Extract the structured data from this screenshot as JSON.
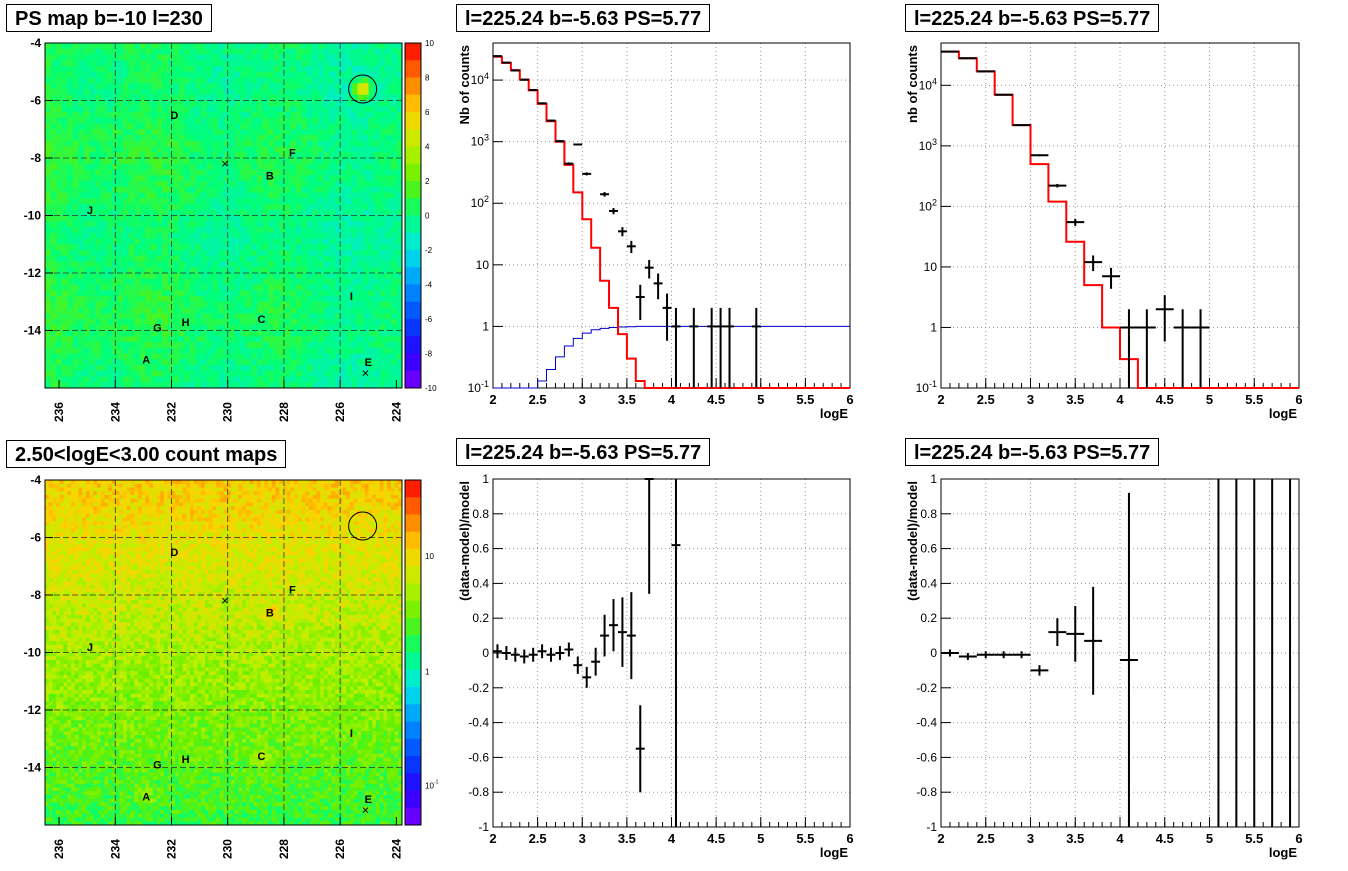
{
  "panels": {
    "ps_map": {
      "title": "PS map b=-10 l=230"
    },
    "count_map": {
      "title": "2.50<logE<3.00 count maps"
    },
    "spec1": {
      "title": "l=225.24 b=-5.63 PS=5.77"
    },
    "spec2": {
      "title": "l=225.24 b=-5.63 PS=5.77"
    },
    "res1": {
      "title": "l=225.24 b=-5.63 PS=5.77"
    },
    "res2": {
      "title": "l=225.24 b=-5.63 PS=5.77"
    }
  },
  "colors": {
    "model": "#ff0000",
    "data": "#000000",
    "exposure": "#0000cc",
    "grid": "#888888"
  },
  "chart_data": [
    {
      "id": "ps_map",
      "type": "heatmap",
      "title": "PS map b=-10 l=230",
      "x_ticks": [
        "236",
        "234",
        "232",
        "230",
        "228",
        "226",
        "224"
      ],
      "y_ticks": [
        "-4",
        "-6",
        "-8",
        "-10",
        "-12",
        "-14"
      ],
      "xlim": [
        236.5,
        223.8
      ],
      "ylim": [
        -16,
        -4
      ],
      "colorbar_ticks": [
        "10",
        "8",
        "6",
        "4",
        "2",
        "0",
        "-2",
        "-4",
        "-6",
        "-8",
        "-10"
      ],
      "colorbar_range": [
        -10,
        10
      ],
      "labels": [
        {
          "text": "D",
          "l": 231.9,
          "b": -6.5
        },
        {
          "text": "F",
          "l": 227.7,
          "b": -7.8
        },
        {
          "text": "B",
          "l": 228.5,
          "b": -8.6
        },
        {
          "text": "J",
          "l": 234.9,
          "b": -9.8
        },
        {
          "text": "I",
          "l": 225.6,
          "b": -12.8
        },
        {
          "text": "G",
          "l": 232.5,
          "b": -13.9
        },
        {
          "text": "H",
          "l": 231.5,
          "b": -13.7
        },
        {
          "text": "C",
          "l": 228.8,
          "b": -13.6
        },
        {
          "text": "A",
          "l": 232.9,
          "b": -15.0
        },
        {
          "text": "E",
          "l": 225.0,
          "b": -15.1
        }
      ],
      "source_circle": {
        "l": 225.2,
        "b": -5.6
      },
      "crosses": [
        {
          "l": 230.1,
          "b": -8.2
        },
        {
          "l": 225.1,
          "b": -15.5
        }
      ]
    },
    {
      "id": "count_map",
      "type": "heatmap",
      "title": "2.50<logE<3.00 count maps",
      "x_ticks": [
        "236",
        "234",
        "232",
        "230",
        "228",
        "226",
        "224"
      ],
      "y_ticks": [
        "-4",
        "-6",
        "-8",
        "-10",
        "-12",
        "-14"
      ],
      "xlim": [
        236.5,
        223.8
      ],
      "ylim": [
        -16,
        -4
      ],
      "colorbar_ticks": [
        "10",
        "1",
        "10-1"
      ],
      "colorbar_scale": "log",
      "labels": [
        {
          "text": "D",
          "l": 231.9,
          "b": -6.5
        },
        {
          "text": "F",
          "l": 227.7,
          "b": -7.8
        },
        {
          "text": "B",
          "l": 228.5,
          "b": -8.6
        },
        {
          "text": "J",
          "l": 234.9,
          "b": -9.8
        },
        {
          "text": "I",
          "l": 225.6,
          "b": -12.8
        },
        {
          "text": "G",
          "l": 232.5,
          "b": -13.9
        },
        {
          "text": "H",
          "l": 231.5,
          "b": -13.7
        },
        {
          "text": "C",
          "l": 228.8,
          "b": -13.6
        },
        {
          "text": "A",
          "l": 232.9,
          "b": -15.0
        },
        {
          "text": "E",
          "l": 225.0,
          "b": -15.1
        }
      ],
      "source_circle": {
        "l": 225.2,
        "b": -5.6
      },
      "crosses": [
        {
          "l": 230.1,
          "b": -8.2
        },
        {
          "l": 225.1,
          "b": -15.5
        }
      ]
    },
    {
      "id": "spec1",
      "type": "line",
      "title": "l=225.24 b=-5.63 PS=5.77",
      "xlabel": "logE",
      "ylabel": "Nb of counts",
      "xlim": [
        2,
        6
      ],
      "ylim": [
        0.1,
        40000
      ],
      "yscale": "log",
      "x_ticks": [
        "2",
        "2.5",
        "3",
        "3.5",
        "4",
        "4.5",
        "5",
        "5.5",
        "6"
      ],
      "y_ticks": [
        "10-1",
        "1",
        "10",
        "102",
        "103",
        "104"
      ],
      "grid": true,
      "series": [
        {
          "role": "model_hist",
          "step": 0.1,
          "edges_start": 2.0,
          "values": [
            24000,
            19000,
            14500,
            10200,
            6800,
            4100,
            2150,
            1000,
            420,
            150,
            55,
            19,
            5.5,
            2.0,
            0.75,
            0.3,
            0.13,
            0.1,
            0.1,
            0.1,
            0.1,
            0.1,
            0.1,
            0.1,
            0.1,
            0.1,
            0.1,
            0.1,
            0.1,
            0.1,
            0.1,
            0.1,
            0.1,
            0.1,
            0.1,
            0.1,
            0.1,
            0.1,
            0.1,
            0.1
          ]
        },
        {
          "role": "exposure",
          "step": 0.1,
          "edges_start": 2.0,
          "values": [
            0.1,
            0.1,
            0.1,
            0.1,
            0.1,
            0.13,
            0.2,
            0.32,
            0.48,
            0.64,
            0.78,
            0.88,
            0.93,
            0.96,
            0.98,
            0.99,
            1,
            1,
            1,
            1,
            1,
            1,
            1,
            1,
            1,
            1,
            1,
            1,
            1,
            1,
            1,
            1,
            1,
            1,
            1,
            1,
            1,
            1,
            1,
            1
          ]
        },
        {
          "role": "data",
          "points": [
            [
              2.05,
              24500,
              0.05
            ],
            [
              2.15,
              19200,
              0.05
            ],
            [
              2.25,
              14300,
              0.05
            ],
            [
              2.35,
              10100,
              0.05
            ],
            [
              2.45,
              6900,
              0.05
            ],
            [
              2.55,
              4200,
              0.05
            ],
            [
              2.65,
              2200,
              0.05
            ],
            [
              2.75,
              1020,
              0.05
            ],
            [
              2.85,
              440,
              0.05
            ],
            [
              2.95,
              900,
              0.05
            ],
            [
              3.05,
              300,
              0.05
            ],
            [
              3.25,
              140,
              0.05
            ],
            [
              3.35,
              75,
              0.05
            ],
            [
              3.45,
              35,
              0.05
            ],
            [
              3.55,
              20,
              0.05
            ],
            [
              3.65,
              3,
              0.05
            ],
            [
              3.75,
              9,
              0.05
            ],
            [
              3.85,
              5,
              0.05
            ],
            [
              3.95,
              2,
              0.05
            ],
            [
              4.05,
              1,
              0.05
            ],
            [
              4.25,
              1,
              0.05
            ],
            [
              4.45,
              1,
              0.05
            ],
            [
              4.55,
              1,
              0.05
            ],
            [
              4.65,
              1,
              0.05
            ],
            [
              4.95,
              1,
              0.05
            ]
          ]
        }
      ]
    },
    {
      "id": "spec2",
      "type": "line",
      "title": "l=225.24 b=-5.63 PS=5.77",
      "xlabel": "logE",
      "ylabel": "nb of counts",
      "xlim": [
        2,
        6
      ],
      "ylim": [
        0.1,
        50000
      ],
      "yscale": "log",
      "x_ticks": [
        "2",
        "2.5",
        "3",
        "3.5",
        "4",
        "4.5",
        "5",
        "5.5",
        "6"
      ],
      "y_ticks": [
        "10-1",
        "1",
        "10",
        "102",
        "103",
        "104"
      ],
      "grid": true,
      "series": [
        {
          "role": "model_hist",
          "step": 0.2,
          "edges_start": 2.0,
          "values": [
            36000,
            28000,
            17000,
            7000,
            2200,
            500,
            120,
            26,
            5,
            1,
            0.3,
            0.1,
            0.1,
            0.1,
            0.1,
            0.1,
            0.1,
            0.1,
            0.1,
            0.1
          ]
        },
        {
          "role": "data",
          "points": [
            [
              2.1,
              36000,
              0.1
            ],
            [
              2.3,
              28000,
              0.1
            ],
            [
              2.5,
              17000,
              0.1
            ],
            [
              2.7,
              7000,
              0.1
            ],
            [
              2.9,
              2200,
              0.1
            ],
            [
              3.1,
              700,
              0.1
            ],
            [
              3.3,
              220,
              0.1
            ],
            [
              3.5,
              55,
              0.1
            ],
            [
              3.7,
              12,
              0.1
            ],
            [
              3.9,
              7,
              0.1
            ],
            [
              4.1,
              1,
              0.1
            ],
            [
              4.3,
              1,
              0.1
            ],
            [
              4.5,
              2,
              0.1
            ],
            [
              4.7,
              1,
              0.1
            ],
            [
              4.9,
              1,
              0.1
            ]
          ]
        }
      ]
    },
    {
      "id": "res1",
      "type": "scatter",
      "title": "l=225.24 b=-5.63 PS=5.77",
      "xlabel": "logE",
      "ylabel": "(data-model)/model",
      "xlim": [
        2,
        6
      ],
      "ylim": [
        -1,
        1
      ],
      "x_ticks": [
        "2",
        "2.5",
        "3",
        "3.5",
        "4",
        "4.5",
        "5",
        "5.5",
        "6"
      ],
      "y_ticks": [
        "-1",
        "-0.8",
        "-0.6",
        "-0.4",
        "-0.2",
        "0",
        "0.2",
        "0.4",
        "0.6",
        "0.8",
        "1"
      ],
      "grid": true,
      "points": [
        [
          2.05,
          0.01,
          0.04,
          0.05
        ],
        [
          2.15,
          0.0,
          0.04,
          0.05
        ],
        [
          2.25,
          -0.01,
          0.04,
          0.05
        ],
        [
          2.35,
          -0.02,
          0.04,
          0.05
        ],
        [
          2.45,
          -0.01,
          0.04,
          0.05
        ],
        [
          2.55,
          0.01,
          0.04,
          0.05
        ],
        [
          2.65,
          -0.01,
          0.04,
          0.05
        ],
        [
          2.75,
          0.0,
          0.04,
          0.05
        ],
        [
          2.85,
          0.02,
          0.04,
          0.05
        ],
        [
          2.95,
          -0.07,
          0.05,
          0.05
        ],
        [
          3.05,
          -0.14,
          0.06,
          0.05
        ],
        [
          3.15,
          -0.05,
          0.08,
          0.05
        ],
        [
          3.25,
          0.1,
          0.12,
          0.05
        ],
        [
          3.35,
          0.16,
          0.15,
          0.05
        ],
        [
          3.45,
          0.12,
          0.2,
          0.05
        ],
        [
          3.55,
          0.1,
          0.25,
          0.05
        ],
        [
          3.65,
          -0.55,
          0.25,
          0.05
        ],
        [
          3.75,
          1.0,
          0.66,
          0.05
        ],
        [
          4.05,
          0.62,
          1.62,
          0.05
        ]
      ]
    },
    {
      "id": "res2",
      "type": "scatter",
      "title": "l=225.24 b=-5.63 PS=5.77",
      "xlabel": "logE",
      "ylabel": "(data-model)/model",
      "xlim": [
        2,
        6
      ],
      "ylim": [
        -1,
        1
      ],
      "x_ticks": [
        "2",
        "2.5",
        "3",
        "3.5",
        "4",
        "4.5",
        "5",
        "5.5",
        "6"
      ],
      "y_ticks": [
        "-1",
        "-0.8",
        "-0.6",
        "-0.4",
        "-0.2",
        "0",
        "0.2",
        "0.4",
        "0.6",
        "0.8",
        "1"
      ],
      "grid": true,
      "points": [
        [
          2.1,
          0.0,
          0.02,
          0.1
        ],
        [
          2.3,
          -0.02,
          0.02,
          0.1
        ],
        [
          2.5,
          -0.01,
          0.02,
          0.1
        ],
        [
          2.7,
          -0.01,
          0.02,
          0.1
        ],
        [
          2.9,
          -0.01,
          0.02,
          0.1
        ],
        [
          3.1,
          -0.1,
          0.03,
          0.1
        ],
        [
          3.3,
          0.12,
          0.08,
          0.1
        ],
        [
          3.5,
          0.11,
          0.16,
          0.1
        ],
        [
          3.7,
          0.07,
          0.31,
          0.1
        ],
        [
          4.1,
          -0.04,
          0.96,
          0.1
        ],
        [
          5.1,
          1.0,
          2.0,
          0.0
        ],
        [
          5.3,
          1.0,
          2.0,
          0.0
        ],
        [
          5.5,
          1.0,
          2.0,
          0.0
        ],
        [
          5.7,
          1.0,
          2.0,
          0.0
        ],
        [
          5.9,
          1.0,
          2.0,
          0.0
        ]
      ]
    }
  ]
}
